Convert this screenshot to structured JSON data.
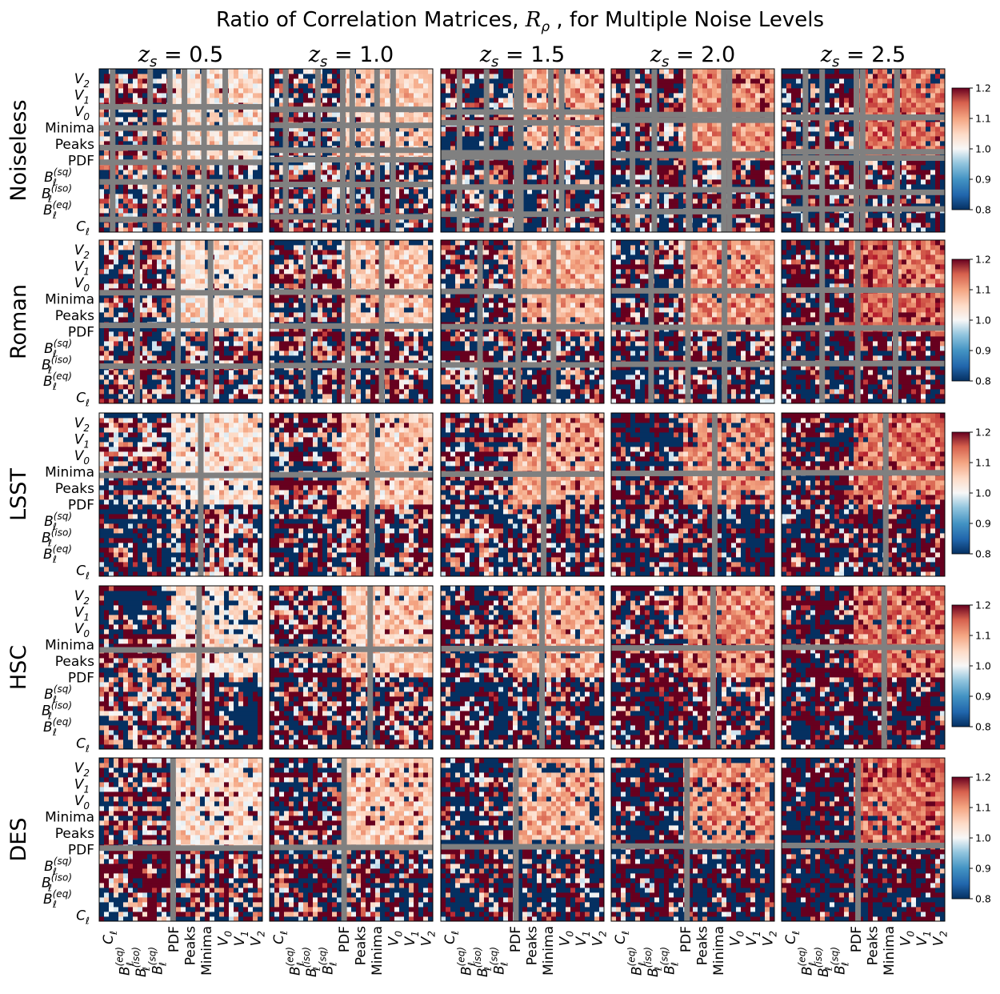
{
  "chart_data": {
    "type": "heatmap",
    "title": "Ratio of Correlation Matrices, Rρ , for Multiple Noise Levels",
    "columns": [
      "zs = 0.5",
      "zs = 1.0",
      "zs = 1.5",
      "zs = 2.0",
      "zs = 2.5"
    ],
    "column_values": [
      0.5,
      1.0,
      1.5,
      2.0,
      2.5
    ],
    "rows": [
      "Noiseless",
      "Roman",
      "LSST",
      "HSC",
      "DES"
    ],
    "statistics_y_top_to_bottom": [
      "V2",
      "V1",
      "V0",
      "Minima",
      "Peaks",
      "PDF",
      "Bℓ(sq)",
      "Bℓ(iso)",
      "Bℓ(eq)",
      "Cℓ"
    ],
    "statistics_x_left_to_right": [
      "Cℓ",
      "Bℓ(eq)",
      "Bℓ(iso)",
      "Bℓ(sq)",
      "PDF",
      "Peaks",
      "Minima",
      "V0",
      "V1",
      "V2"
    ],
    "colorbar": {
      "colormap": "RdBu_r",
      "range": [
        0.8,
        1.2
      ],
      "ticks": [
        "1.2",
        "1.1",
        "1.0",
        "0.9",
        "0.8"
      ],
      "colors": {
        "low": "#053061",
        "mid": "#f7f7f7",
        "high": "#67001f",
        "masked": "#808080"
      }
    },
    "masked_bands": [
      [
        0.08,
        0.31,
        0.43,
        0.52,
        0.64,
        0.77
      ],
      [
        0.23,
        0.48,
        0.68
      ],
      [
        0.62
      ],
      [
        0.61
      ],
      [
        0.45
      ]
    ],
    "disorder_per_row": [
      0.75,
      0.85,
      0.85,
      0.9,
      1.0
    ],
    "structure": "For every cell the statistic blocks Cℓ and Bℓ (left/bottom) are strongly deviating (ratios saturated at 0.8 or 1.2), while PDF, Peaks, Minima, V0, V1, V2 blocks show mild ratios near 1.0–1.1; deviation grows with zs and with noise level."
  }
}
